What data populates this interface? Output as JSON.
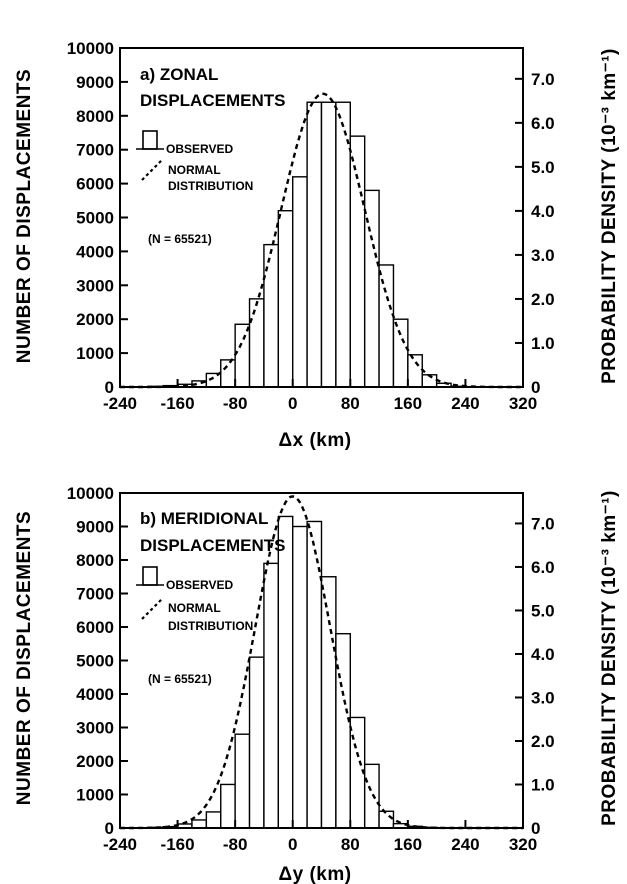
{
  "chart_data": [
    {
      "type": "bar",
      "panel_title_line1": "a) ZONAL",
      "panel_title_line2": "DISPLACEMENTS",
      "legend_observed": "OBSERVED",
      "legend_normal_line1": "NORMAL",
      "legend_normal_line2": "DISTRIBUTION",
      "sample_size": "(N = 65521)",
      "xlabel": "Δx (km)",
      "ylabel_left": "NUMBER OF DISPLACEMENTS",
      "ylabel_right": "PROBABILITY DENSITY (10⁻³ km⁻¹)",
      "xlim": [
        -240,
        320
      ],
      "ylim_left": [
        0,
        10000
      ],
      "ylim_right": [
        0,
        7.7
      ],
      "x_ticks": [
        "-240",
        "-160",
        "-80",
        "0",
        "80",
        "160",
        "240",
        "320"
      ],
      "y_ticks_left": [
        "0",
        "1000",
        "2000",
        "3000",
        "4000",
        "5000",
        "6000",
        "7000",
        "8000",
        "9000",
        "10000"
      ],
      "y_ticks_right": [
        "0",
        "1.0",
        "2.0",
        "3.0",
        "4.0",
        "5.0",
        "6.0",
        "7.0"
      ],
      "bin_width": 20,
      "bin_left_edges": [
        -200,
        -180,
        -160,
        -140,
        -120,
        -100,
        -80,
        -60,
        -40,
        -20,
        0,
        20,
        40,
        60,
        80,
        100,
        120,
        140,
        160,
        180,
        200,
        220
      ],
      "values": [
        20,
        40,
        80,
        180,
        400,
        800,
        1850,
        2600,
        4200,
        5200,
        6200,
        8400,
        8400,
        8400,
        7400,
        5800,
        3600,
        2000,
        950,
        360,
        110,
        20
      ],
      "normal_fit": {
        "mean": 42,
        "peak": 8650,
        "sigma": 58
      }
    },
    {
      "type": "bar",
      "panel_title_line1": "b) MERIDIONAL",
      "panel_title_line2": "DISPLACEMENTS",
      "legend_observed": "OBSERVED",
      "legend_normal_line1": "NORMAL",
      "legend_normal_line2": "DISTRIBUTION",
      "sample_size": "(N = 65521)",
      "xlabel": "Δy (km)",
      "ylabel_left": "NUMBER OF DISPLACEMENTS",
      "ylabel_right": "PROBABILITY DENSITY (10⁻³ km⁻¹)",
      "xlim": [
        -240,
        320
      ],
      "ylim_left": [
        0,
        10000
      ],
      "ylim_right": [
        0,
        7.7
      ],
      "x_ticks": [
        "-240",
        "-160",
        "-80",
        "0",
        "80",
        "160",
        "240",
        "320"
      ],
      "y_ticks_left": [
        "0",
        "1000",
        "2000",
        "3000",
        "4000",
        "5000",
        "6000",
        "7000",
        "8000",
        "9000",
        "10000"
      ],
      "y_ticks_right": [
        "0",
        "1.0",
        "2.0",
        "3.0",
        "4.0",
        "5.0",
        "6.0",
        "7.0"
      ],
      "bin_width": 20,
      "bin_left_edges": [
        -200,
        -180,
        -160,
        -140,
        -120,
        -100,
        -80,
        -60,
        -40,
        -20,
        0,
        20,
        40,
        60,
        80,
        100,
        120,
        140,
        160,
        180,
        200,
        220
      ],
      "values": [
        20,
        40,
        120,
        240,
        480,
        1300,
        2800,
        5100,
        7900,
        9300,
        9000,
        9150,
        7500,
        5800,
        3300,
        1900,
        500,
        130,
        50,
        20,
        10,
        5
      ],
      "normal_fit": {
        "mean": 0,
        "peak": 9900,
        "sigma": 52
      }
    }
  ]
}
